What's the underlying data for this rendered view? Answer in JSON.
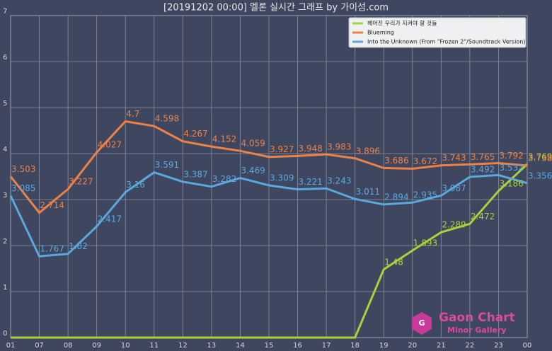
{
  "chart_data": {
    "type": "line",
    "title": "[20191202 00:00] 멜론 실시간 그래프 by 가이섬.com",
    "watermark": {
      "title": "Gaon Chart",
      "subtitle": "Minor Gallery"
    },
    "categories": [
      "01",
      "07",
      "08",
      "09",
      "10",
      "11",
      "12",
      "13",
      "14",
      "15",
      "16",
      "17",
      "18",
      "19",
      "20",
      "21",
      "22",
      "23",
      "00"
    ],
    "ylim": [
      0,
      7
    ],
    "yticks": [
      0,
      1,
      2,
      3,
      4,
      5,
      6,
      7
    ],
    "grid": true,
    "legend": "upper right",
    "series": [
      {
        "name": "헤어진 우리가 지켜야 할 것들",
        "color": "#a6d33a",
        "values": [
          0,
          0,
          0,
          0,
          0,
          0,
          0,
          0,
          0,
          0,
          0,
          0,
          0,
          1.48,
          1.893,
          2.289,
          2.472,
          3.186,
          3.769
        ],
        "value_labels": [
          null,
          null,
          null,
          null,
          null,
          null,
          null,
          null,
          null,
          null,
          null,
          null,
          null,
          "1.48",
          "1.893",
          "2.289",
          "2.472",
          "3.186",
          "3.769"
        ]
      },
      {
        "name": "Blueming",
        "color": "#ee8146",
        "values": [
          3.503,
          2.714,
          3.227,
          4.027,
          4.7,
          4.598,
          4.267,
          4.152,
          4.059,
          3.927,
          3.948,
          3.983,
          3.896,
          3.686,
          3.672,
          3.743,
          3.765,
          3.792,
          3.738
        ]
      },
      {
        "name": "Into the Unknown (From \"Frozen 2\"/Soundtrack Version)",
        "color": "#5aa8de",
        "values": [
          3.085,
          1.767,
          1.82,
          2.417,
          3.16,
          3.591,
          3.387,
          3.282,
          3.469,
          3.309,
          3.221,
          3.243,
          3.011,
          2.894,
          2.935,
          3.087,
          3.492,
          3.532,
          3.356
        ]
      }
    ]
  }
}
